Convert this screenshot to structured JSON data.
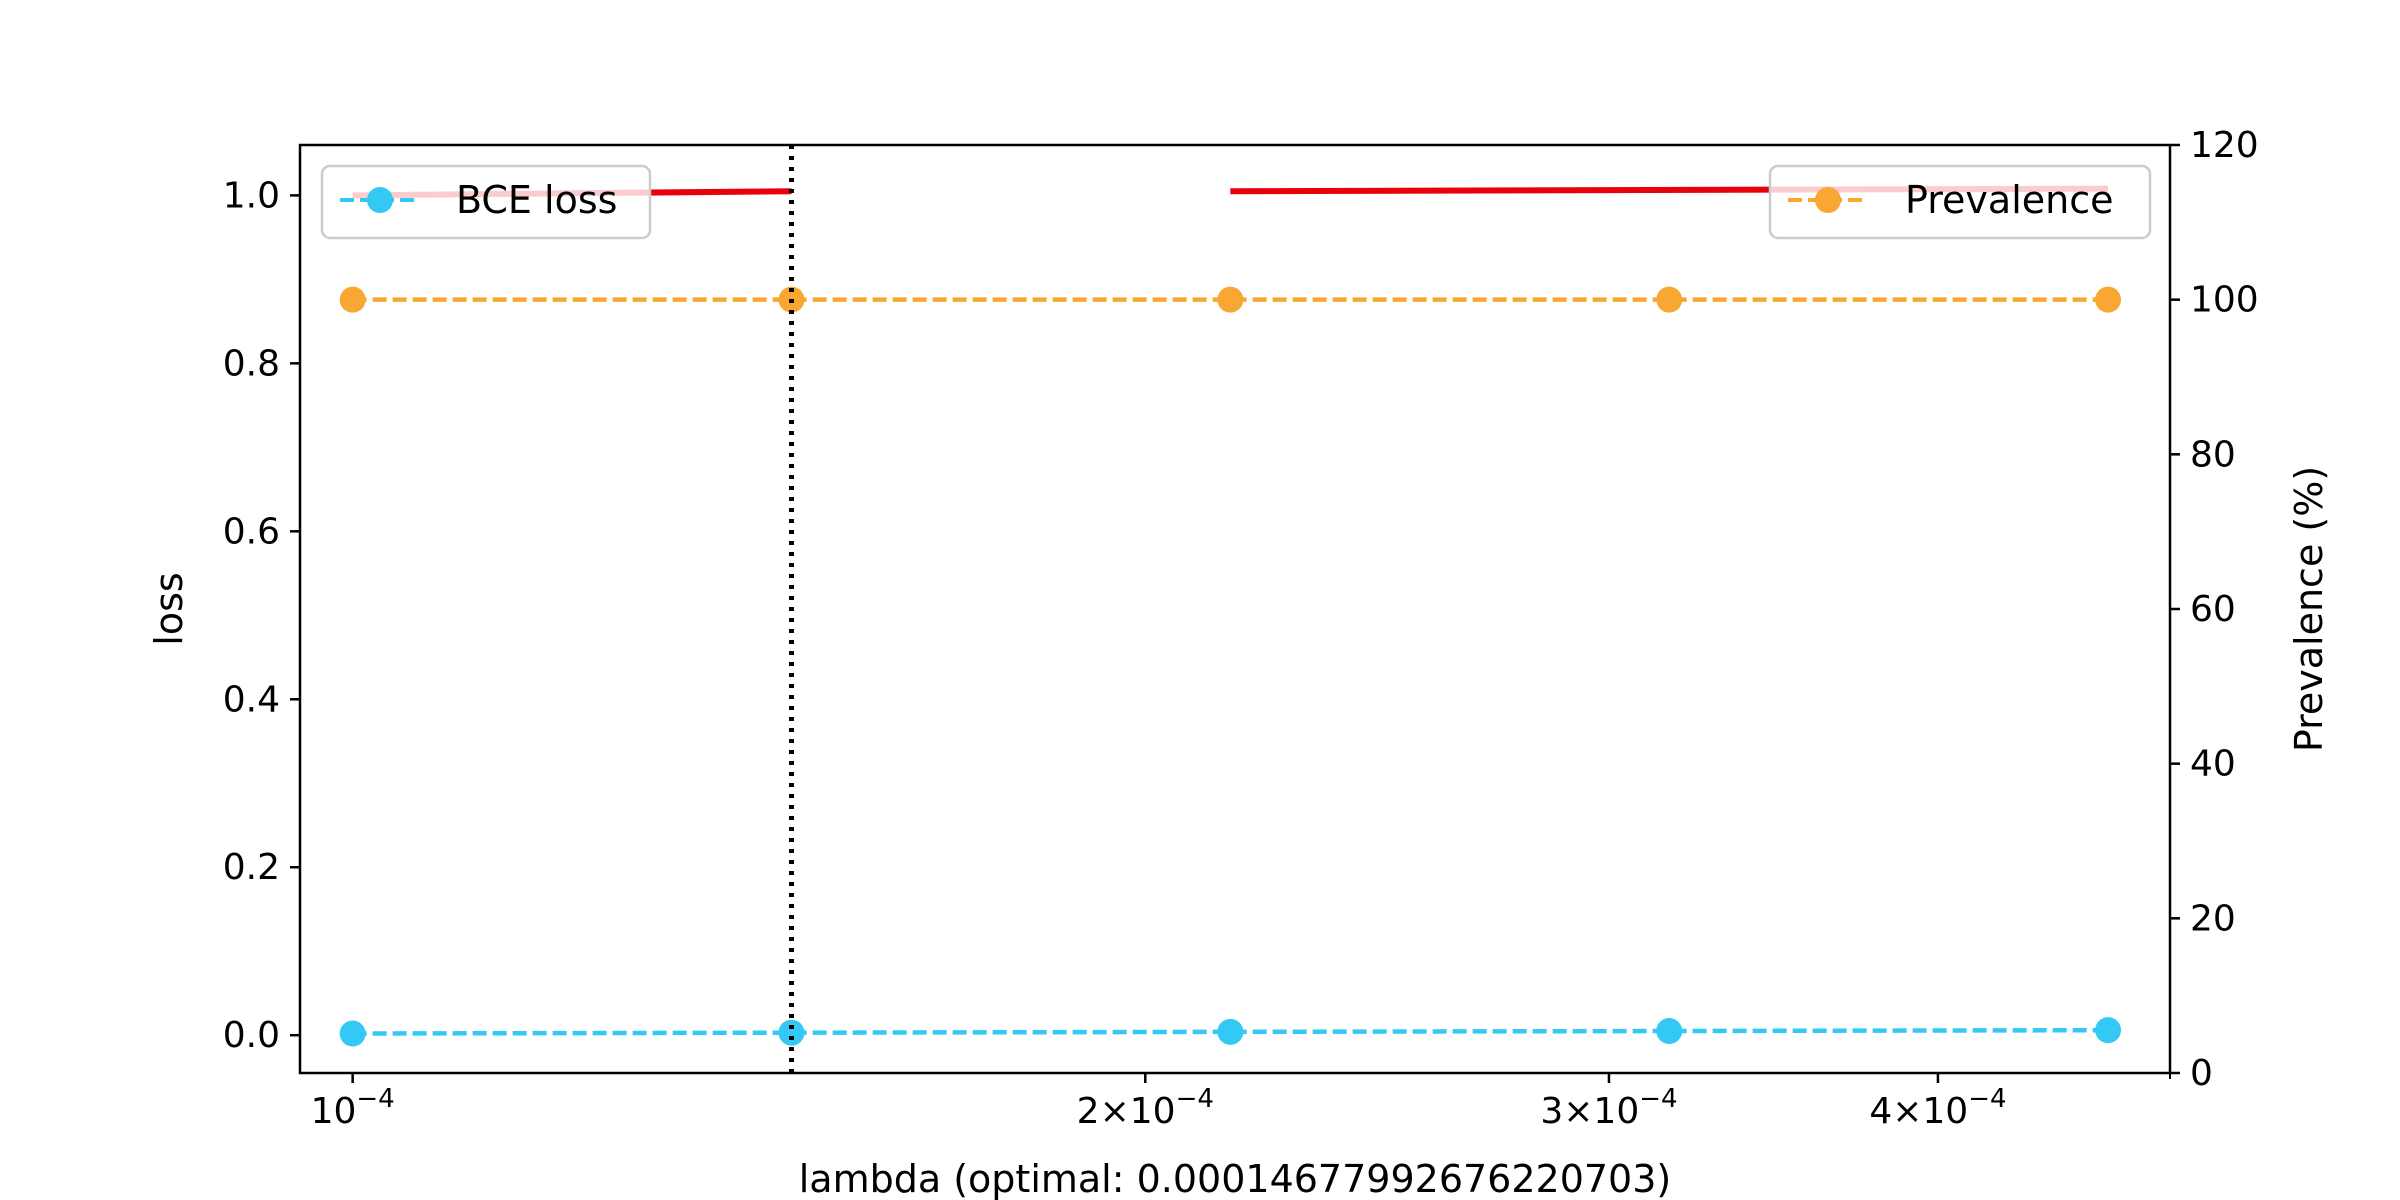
{
  "chart_data": {
    "type": "line",
    "title": "",
    "xlabel": "lambda (optimal: 0.00014677992676220703)",
    "xscale": "log",
    "xlim": [
      9.55e-05,
      0.00049
    ],
    "x_ticks": [
      {
        "value": 0.0001,
        "mant": "",
        "exp": "−4",
        "pre": "10"
      },
      {
        "value": 0.0002,
        "mant": "2",
        "exp": "−4",
        "pre": "10"
      },
      {
        "value": 0.0003,
        "mant": "3",
        "exp": "−4",
        "pre": "10"
      },
      {
        "value": 0.0004,
        "mant": "4",
        "exp": "−4",
        "pre": "10"
      }
    ],
    "x": [
      0.0001,
      0.00014677992676220703,
      0.00021544346900318845,
      0.00031622776601683794,
      0.00046415888336127773
    ],
    "left_axis": {
      "label": "loss",
      "ylim": [
        -0.045,
        1.06
      ],
      "ticks": [
        0.0,
        0.2,
        0.4,
        0.6,
        0.8,
        1.0
      ],
      "tick_labels": [
        "0.0",
        "0.2",
        "0.4",
        "0.6",
        "0.8",
        "1.0"
      ]
    },
    "right_axis": {
      "label": "Prevalence (%)",
      "ylim": [
        0,
        120
      ],
      "ticks": [
        0,
        20,
        40,
        60,
        80,
        100,
        120
      ],
      "tick_labels": [
        "0",
        "20",
        "40",
        "60",
        "80",
        "100",
        "120"
      ]
    },
    "series": [
      {
        "name": "BCE loss",
        "axis": "left",
        "color": "#33c9f4",
        "style": "dashed",
        "marker": "circle",
        "values": [
          0.002,
          0.003,
          0.004,
          0.005,
          0.006
        ]
      },
      {
        "name": "Prevalence",
        "axis": "right",
        "color": "#f9a733",
        "style": "dashed",
        "marker": "circle",
        "values": [
          100,
          100,
          100,
          100,
          100
        ]
      }
    ],
    "optimal_lambda_line": {
      "x": 0.00014677992676220703,
      "color": "#000000",
      "style": "dotted"
    },
    "red_segments": [
      {
        "x": [
          0.0001,
          0.00014677992676220703
        ],
        "y": [
          1.0,
          1.005
        ]
      },
      {
        "x": [
          0.00021544346900318845,
          0.00046415888336127773
        ],
        "y": [
          1.005,
          1.008
        ]
      }
    ],
    "red_color": "#e8000b",
    "legend_left": "upper-left",
    "legend_right": "upper-right",
    "grid": false
  }
}
